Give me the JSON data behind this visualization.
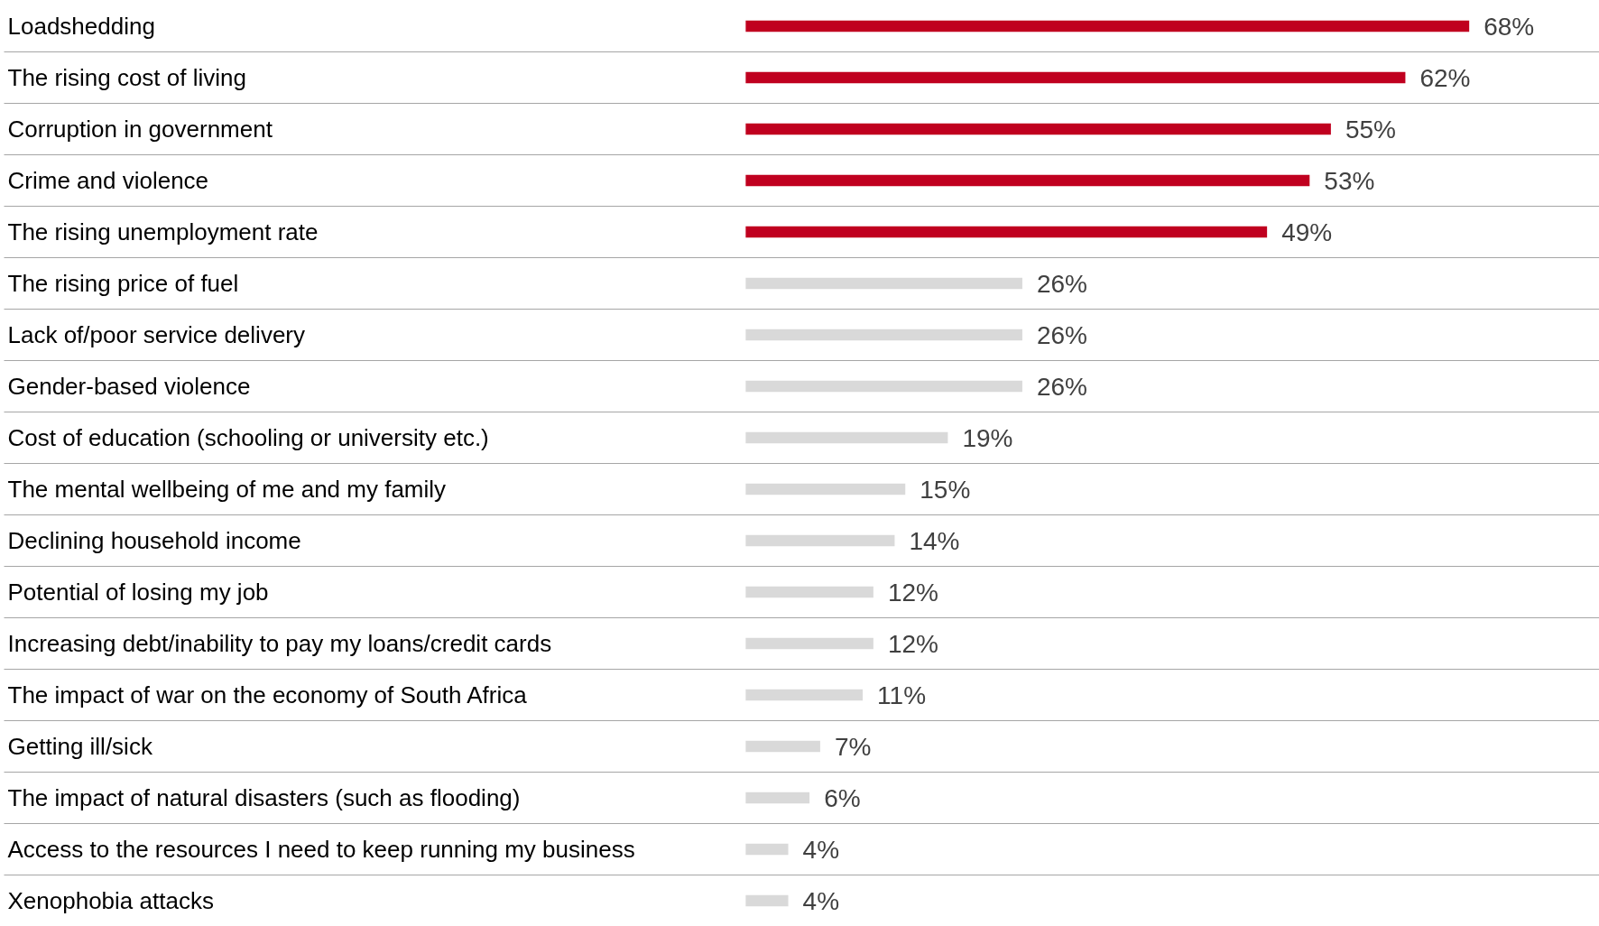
{
  "chart_data": {
    "type": "bar",
    "orientation": "horizontal",
    "grid": "y",
    "value_labels": [
      "68%",
      "62%",
      "55%",
      "53%",
      "49%",
      "26%",
      "26%",
      "26%",
      "19%",
      "15%",
      "14%",
      "12%",
      "12%",
      "11%",
      "7%",
      "6%",
      "4%",
      "4%"
    ],
    "categories": [
      "Loadshedding",
      "The rising cost of living",
      "Corruption in government",
      "Crime and violence",
      "The rising unemployment rate",
      "The rising price of fuel",
      "Lack of/poor service delivery",
      "Gender-based violence",
      "Cost of education (schooling or university etc.)",
      "The mental wellbeing of me and my family",
      "Declining household income",
      "Potential of losing my job",
      "Increasing debt/inability to pay my loans/credit cards",
      "The impact of war on the economy of South Africa",
      "Getting ill/sick",
      "The impact of natural disasters (such as flooding)",
      "Access to the resources I need to keep running my business",
      "Xenophobia attacks"
    ],
    "values": [
      68,
      62,
      55,
      53,
      49,
      26,
      26,
      26,
      19,
      15,
      14,
      12,
      12,
      11,
      7,
      6,
      4,
      4
    ],
    "colors": [
      "#c0001f",
      "#c0001f",
      "#c0001f",
      "#c0001f",
      "#c0001f",
      "#d9d9d9",
      "#d9d9d9",
      "#d9d9d9",
      "#d9d9d9",
      "#d9d9d9",
      "#d9d9d9",
      "#d9d9d9",
      "#d9d9d9",
      "#d9d9d9",
      "#d9d9d9",
      "#d9d9d9",
      "#d9d9d9",
      "#d9d9d9"
    ]
  }
}
